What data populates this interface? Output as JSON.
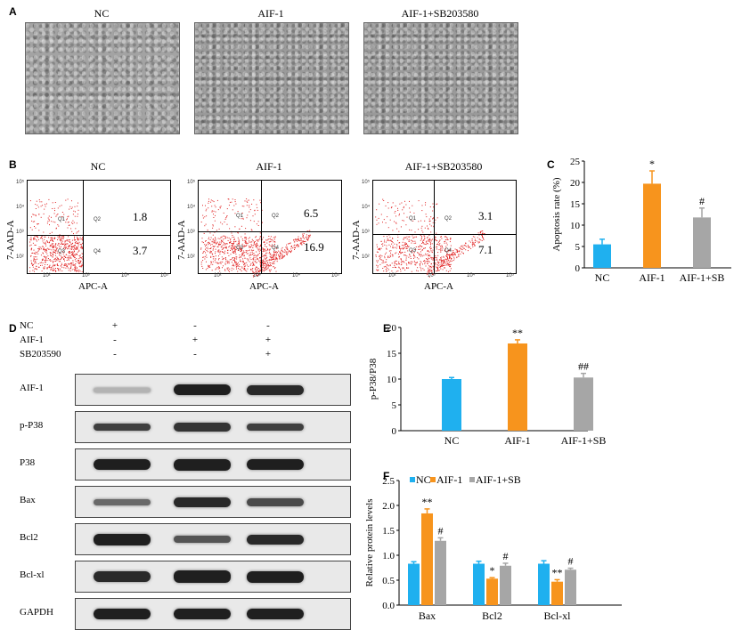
{
  "panel_letters": {
    "A": "A",
    "B": "B",
    "C": "C",
    "D": "D",
    "E": "E",
    "F": "F"
  },
  "panel_a": {
    "labels": [
      "NC",
      "AIF-1",
      "AIF-1+SB203580"
    ]
  },
  "panel_b": {
    "titles": [
      "NC",
      "AIF-1",
      "AIF-1+SB203580"
    ],
    "xlabel": "APC-A",
    "ylabel": "7-AAD-A",
    "quadrants": [
      "Q1",
      "Q2",
      "Q3",
      "Q4"
    ],
    "upper_values": [
      "1.8",
      "6.5",
      "3.1"
    ],
    "lower_values": [
      "3.7",
      "16.9",
      "7.1"
    ],
    "x_ticks": [
      "10²",
      "10³",
      "10⁴",
      "10⁵"
    ],
    "y_ticks": [
      "10⁵",
      "10⁴",
      "10³",
      "10²"
    ]
  },
  "panel_d": {
    "treatments": [
      {
        "name": "NC",
        "signs": [
          "+",
          "-",
          "-"
        ]
      },
      {
        "name": "AIF-1",
        "signs": [
          "-",
          "+",
          "+"
        ]
      },
      {
        "name": "SB203590",
        "signs": [
          "-",
          "-",
          "+"
        ]
      }
    ],
    "blots": [
      "AIF-1",
      "p-P38",
      "P38",
      "Bax",
      "Bcl2",
      "Bcl-xl",
      "GAPDH"
    ]
  },
  "chart_data": [
    {
      "type": "bar",
      "panel": "C",
      "categories": [
        "NC",
        "AIF-1",
        "AIF-1+SB"
      ],
      "values": [
        5.5,
        19.7,
        11.8
      ],
      "errors": [
        1.2,
        3.0,
        2.2
      ],
      "annotations": [
        "",
        "*",
        "#"
      ],
      "ylabel": "Apoptosis rate (%)",
      "ylim": [
        0,
        25
      ],
      "yticks": [
        0,
        5,
        10,
        15,
        20,
        25
      ],
      "colors": [
        "#1fb0ef",
        "#f7941d",
        "#a6a6a6"
      ]
    },
    {
      "type": "bar",
      "panel": "E",
      "categories": [
        "NC",
        "AIF-1",
        "AIF-1+SB"
      ],
      "values": [
        10.0,
        16.9,
        10.3
      ],
      "errors": [
        0.3,
        0.7,
        0.8
      ],
      "annotations": [
        "",
        "**",
        "##"
      ],
      "ylabel": "p-P38/P38",
      "ylim": [
        0,
        20
      ],
      "yticks": [
        0,
        5,
        10,
        15,
        20
      ],
      "colors": [
        "#1fb0ef",
        "#f7941d",
        "#a6a6a6"
      ]
    },
    {
      "type": "bar",
      "panel": "F",
      "categories": [
        "Bax",
        "Bcl2",
        "Bcl-xl"
      ],
      "series": [
        {
          "name": "NC",
          "values": [
            0.83,
            0.83,
            0.83
          ],
          "errors": [
            0.04,
            0.05,
            0.06
          ],
          "annotations": [
            "",
            "",
            ""
          ],
          "color": "#1fb0ef"
        },
        {
          "name": "AIF-1",
          "values": [
            1.84,
            0.53,
            0.47
          ],
          "errors": [
            0.09,
            0.02,
            0.04
          ],
          "annotations": [
            "**",
            "*",
            "**"
          ],
          "color": "#f7941d"
        },
        {
          "name": "AIF-1+SB",
          "values": [
            1.29,
            0.79,
            0.71
          ],
          "errors": [
            0.06,
            0.05,
            0.03
          ],
          "annotations": [
            "#",
            "#",
            "#"
          ],
          "color": "#a6a6a6"
        }
      ],
      "ylabel": "Relative protein levels",
      "ylim": [
        0,
        2.5
      ],
      "yticks": [
        "0.0",
        "0.5",
        "1.0",
        "1.5",
        "2.0",
        "2.5"
      ],
      "legend": "top"
    }
  ]
}
